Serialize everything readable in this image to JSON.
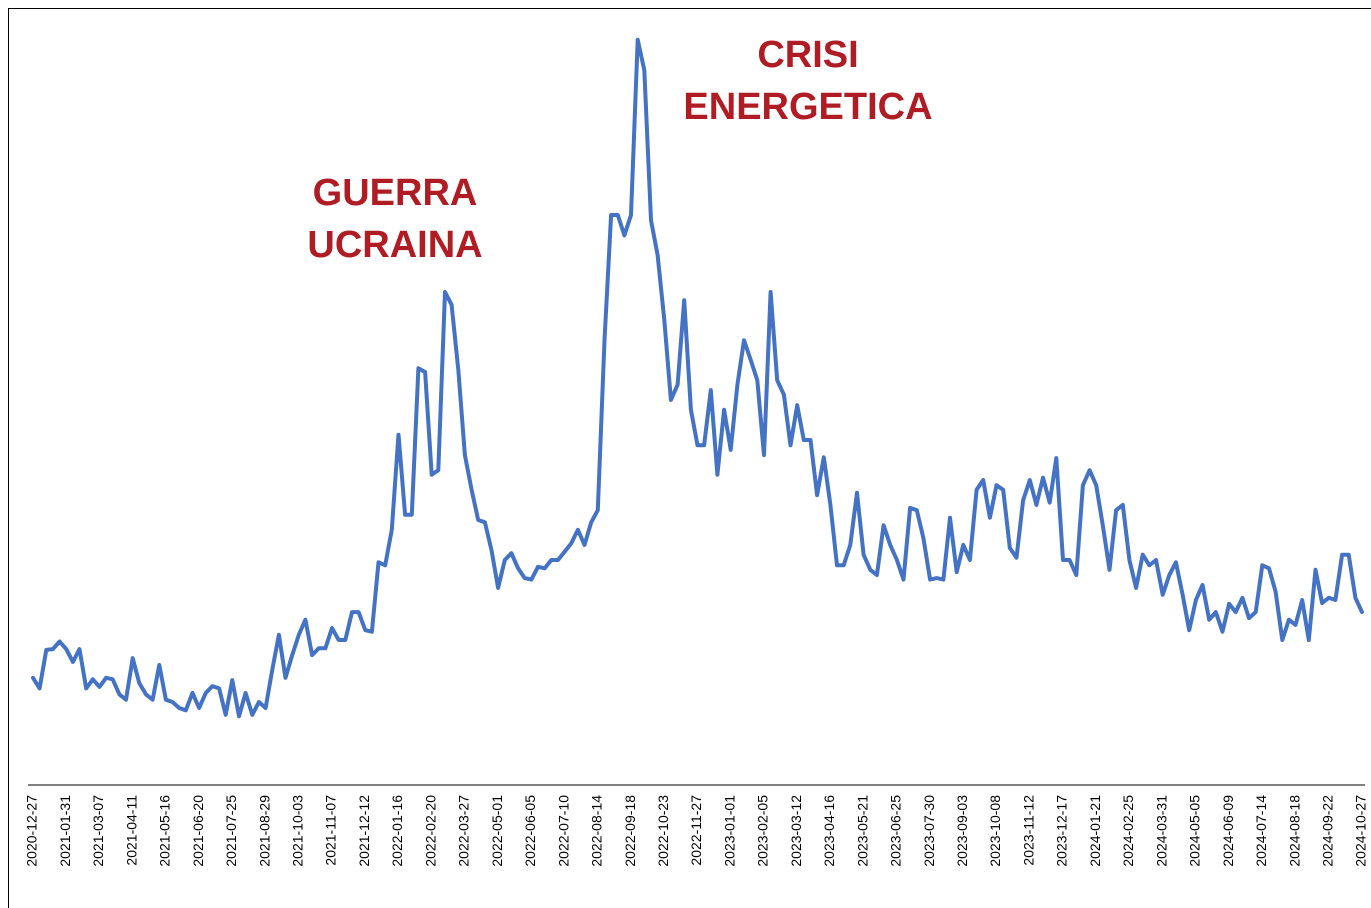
{
  "chart_data": {
    "type": "line",
    "color": "#4472c4",
    "annotation_color": "#b01c24",
    "annotations": [
      [
        "GUERRA",
        "UCRAINA"
      ],
      [
        "CRISI",
        "ENERGETICA"
      ]
    ],
    "ylim": [
      0,
      100
    ],
    "categories": [
      "2020-12-27",
      null,
      null,
      null,
      null,
      "2021-01-31",
      null,
      null,
      null,
      null,
      "2021-03-07",
      null,
      null,
      null,
      null,
      "2021-04-11",
      null,
      null,
      null,
      null,
      "2021-05-16",
      null,
      null,
      null,
      null,
      "2021-06-20",
      null,
      null,
      null,
      null,
      "2021-07-25",
      null,
      null,
      null,
      null,
      "2021-08-29",
      null,
      null,
      null,
      null,
      "2021-10-03",
      null,
      null,
      null,
      null,
      "2021-11-07",
      null,
      null,
      null,
      null,
      "2021-12-12",
      null,
      null,
      null,
      null,
      "2022-01-16",
      null,
      null,
      null,
      null,
      "2022-02-20",
      null,
      null,
      null,
      null,
      "2022-03-27",
      null,
      null,
      null,
      null,
      "2022-05-01",
      null,
      null,
      null,
      null,
      "2022-06-05",
      null,
      null,
      null,
      null,
      "2022-07-10",
      null,
      null,
      null,
      null,
      "2022-08-14",
      null,
      null,
      null,
      null,
      "2022-09-18",
      null,
      null,
      null,
      null,
      "2022-10-23",
      null,
      null,
      null,
      null,
      "2022-11-27",
      null,
      null,
      null,
      null,
      "2023-01-01",
      null,
      null,
      null,
      null,
      "2023-02-05",
      null,
      null,
      null,
      null,
      "2023-03-12",
      null,
      null,
      null,
      null,
      "2023-04-16",
      null,
      null,
      null,
      null,
      "2023-05-21",
      null,
      null,
      null,
      null,
      "2023-06-25",
      null,
      null,
      null,
      null,
      "2023-07-30",
      null,
      null,
      null,
      null,
      "2023-09-03",
      null,
      null,
      null,
      null,
      "2023-10-08",
      null,
      null,
      null,
      null,
      "2023-11-12",
      null,
      null,
      null,
      null,
      "2023-12-17",
      null,
      null,
      null,
      null,
      "2024-01-21",
      null,
      null,
      null,
      null,
      "2024-02-25",
      null,
      null,
      null,
      null,
      "2024-03-31",
      null,
      null,
      null,
      null,
      "2024-05-05",
      null,
      null,
      null,
      null,
      "2024-06-09",
      null,
      null,
      null,
      null,
      "2024-07-14",
      null,
      null,
      null,
      null,
      "2024-08-18",
      null,
      null,
      null,
      null,
      "2024-09-22",
      null,
      null,
      null,
      null,
      "2024-10-27"
    ],
    "values": [
      14.2,
      12.8,
      17.9,
      18,
      19,
      18,
      16.3,
      18,
      12.8,
      14,
      13,
      14.2,
      14,
      12,
      11.3,
      16.8,
      13.5,
      12,
      11.3,
      15.9,
      11.3,
      11,
      10.2,
      9.9,
      12.2,
      10.2,
      12.2,
      13.1,
      12.8,
      9.3,
      13.9,
      9.1,
      12.2,
      9.3,
      11,
      10.2,
      15.2,
      19.9,
      14.2,
      17.2,
      19.9,
      21.9,
      17.2,
      18.1,
      18.1,
      20.8,
      19.2,
      19.2,
      22.9,
      22.9,
      20.5,
      20.3,
      29.5,
      29.1,
      33.8,
      46.4,
      35.8,
      35.8,
      55.2,
      54.7,
      41.1,
      41.7,
      65.3,
      63.6,
      55,
      43.7,
      39.1,
      35.1,
      34.8,
      31.1,
      26.1,
      29.8,
      30.7,
      28.7,
      27.4,
      27.2,
      28.9,
      28.7,
      29.8,
      29.8,
      30.9,
      32,
      33.8,
      31.8,
      34.8,
      36.4,
      58.9,
      75.5,
      75.5,
      72.8,
      75.5,
      98.7,
      94.7,
      74.8,
      70.2,
      61.6,
      51,
      53,
      64.2,
      49.7,
      45,
      45,
      52.3,
      41.1,
      49.7,
      44.4,
      53,
      58.9,
      56.3,
      53.6,
      43.7,
      65.3,
      53.6,
      51.7,
      45,
      50.3,
      45.7,
      45.7,
      38.4,
      43.4,
      37.1,
      29.1,
      29.1,
      31.8,
      38.7,
      30.5,
      28.5,
      27.8,
      34.4,
      31.8,
      29.8,
      27.2,
      36.7,
      36.4,
      32.7,
      27.2,
      27.4,
      27.2,
      35.4,
      28.2,
      31.8,
      29.8,
      39.1,
      40.4,
      35.4,
      39.7,
      39.1,
      31.4,
      30.1,
      37.7,
      40.4,
      37.1,
      40.7,
      37.4,
      43.3,
      29.8,
      29.8,
      27.8,
      39.7,
      41.7,
      39.7,
      34.4,
      28.5,
      36.4,
      37.1,
      29.8,
      26.1,
      30.5,
      29.1,
      29.8,
      25.2,
      27.8,
      29.5,
      25.2,
      20.5,
      24.5,
      26.5,
      21.9,
      22.9,
      20.3,
      24,
      22.9,
      24.8,
      22.1,
      22.9,
      29.1,
      28.7,
      25.6,
      19.2,
      21.9,
      21.2,
      24.5,
      19.2,
      28.5,
      24.1,
      24.8,
      24.5,
      30.5,
      30.5,
      24.8,
      22.9
    ]
  }
}
